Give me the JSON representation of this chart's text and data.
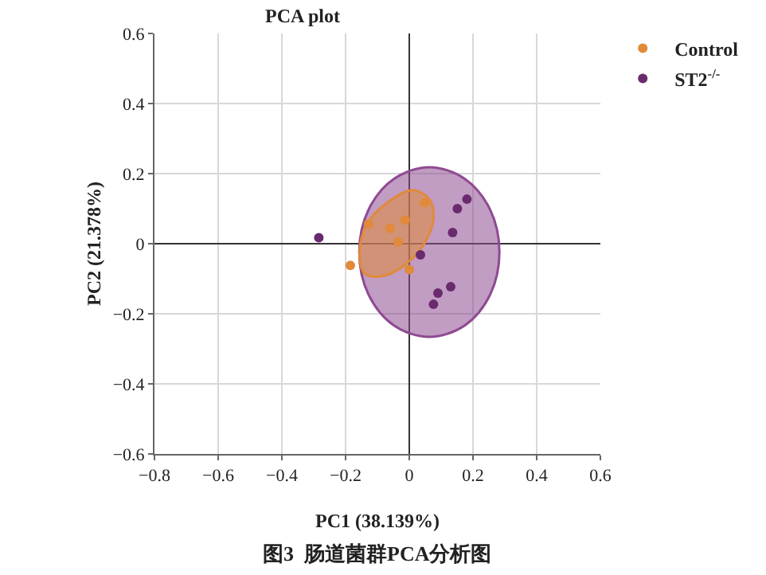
{
  "chart_data": {
    "type": "scatter",
    "title": "PCA plot",
    "xlabel": "PC1 (38.139%)",
    "ylabel": "PC2 (21.378%)",
    "annotations": [
      "图3  肠道菌群PCA分析图"
    ],
    "xlim": [
      -0.8,
      0.6
    ],
    "ylim": [
      -0.6,
      0.6
    ],
    "xticks": [
      {
        "value": -0.8,
        "label": "−0.8"
      },
      {
        "value": -0.6,
        "label": "−0.6"
      },
      {
        "value": -0.4,
        "label": "−0.4"
      },
      {
        "value": -0.2,
        "label": "−0.2"
      },
      0,
      0.2,
      0.4,
      0.6
    ],
    "yticks": [
      {
        "value": -0.6,
        "label": "−0.6"
      },
      {
        "value": -0.4,
        "label": "−0.4"
      },
      {
        "value": -0.2,
        "label": "−0.2"
      },
      0,
      0.2,
      0.4,
      0.6
    ],
    "grid": true,
    "legend": "top right",
    "marker": "circle",
    "series": [
      {
        "type": "area",
        "marker": "none",
        "color": "#8e4a91",
        "x": [
          0.283,
          0.254,
          0.173,
          0.063,
          -0.047,
          -0.128,
          -0.157,
          -0.128,
          -0.047,
          0.063,
          0.173,
          0.254,
          0.283
        ],
        "values": [
          -0.024,
          0.097,
          0.186,
          0.218,
          0.186,
          0.097,
          -0.024,
          -0.145,
          -0.234,
          -0.266,
          -0.234,
          -0.145,
          -0.024
        ]
      },
      {
        "type": "area",
        "marker": "none",
        "color": "#e08a3a",
        "x": [
          0.01,
          0.063,
          0.076,
          0.051,
          -0.006,
          -0.081,
          -0.14,
          -0.156,
          -0.131,
          -0.065,
          0.01
        ],
        "values": [
          0.153,
          0.127,
          0.074,
          0.006,
          -0.055,
          -0.092,
          -0.085,
          -0.024,
          0.059,
          0.12,
          0.153
        ]
      },
      {
        "name": "Control",
        "color": "#e08a3a",
        "x": [
          -0.185,
          -0.128,
          -0.06,
          -0.013,
          -0.035,
          0.048,
          0
        ],
        "values": [
          -0.062,
          0.056,
          0.044,
          0.067,
          0.005,
          0.117,
          -0.074
        ]
      },
      {
        "name": "ST2$^{-/-}$",
        "color": "#6a2a6e",
        "x": [
          -0.284,
          0.035,
          0.136,
          0.151,
          0.181,
          0.13,
          0.09,
          0.076
        ],
        "values": [
          0.017,
          -0.032,
          0.032,
          0.1,
          0.127,
          -0.123,
          -0.141,
          -0.173
        ]
      }
    ]
  }
}
